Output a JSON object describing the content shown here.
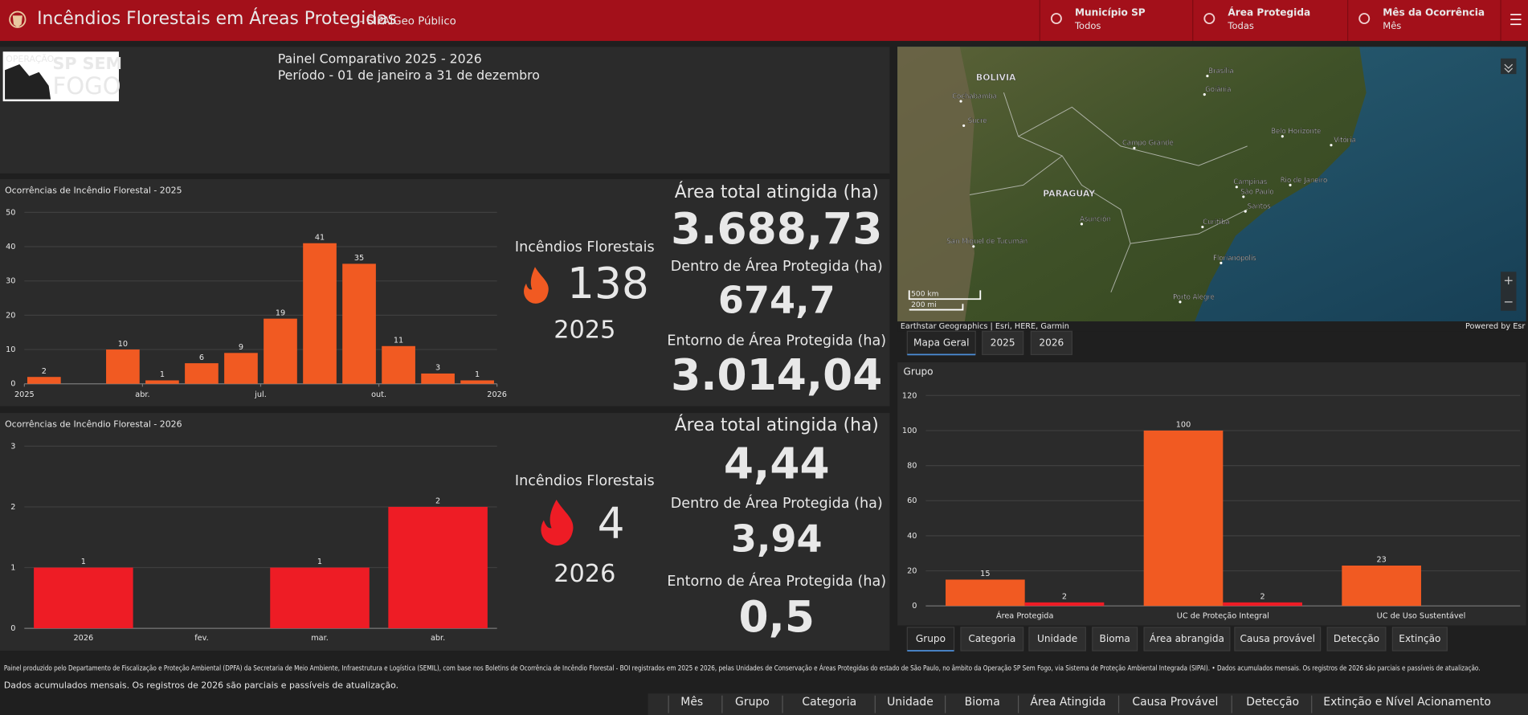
{
  "header": {
    "title": "Incêndios Florestais em Áreas Protegidas",
    "subtitle": "- SIPAIGeo Público",
    "filters": [
      {
        "label": "Município SP",
        "value": "Todos"
      },
      {
        "label": "Área Protegida",
        "value": "Todas"
      },
      {
        "label": "Mês da Ocorrência",
        "value": "Mês"
      }
    ]
  },
  "panel": {
    "logo_top": "OPERAÇÃO",
    "logo_main": "SP SEM",
    "logo_bottom": "FOGO",
    "title": "Painel Comparativo 2025 - 2026",
    "period": "Período - 01 de janeiro a 31 de dezembro"
  },
  "charts": [
    {
      "type": "bar",
      "title": "Ocorrências de Incêndio Florestal - 2025",
      "color": "#f15a22",
      "values": [
        2,
        null,
        10,
        1,
        6,
        9,
        19,
        41,
        35,
        11,
        3,
        1
      ],
      "xlim": [
        0,
        12
      ],
      "xticks": [
        {
          "value": 0,
          "label": "2025"
        },
        {
          "value": 3,
          "label": "abr."
        },
        {
          "value": 6,
          "label": "jul."
        },
        {
          "value": 9,
          "label": "out."
        },
        {
          "value": 12,
          "label": "2026"
        }
      ],
      "ylim": [
        0,
        50
      ],
      "yticks": [
        0,
        10,
        20,
        30,
        40,
        50
      ],
      "grid": true
    },
    {
      "type": "bar",
      "title": "Ocorrências de Incêndio Florestal - 2026",
      "color": "#ee1c25",
      "categories": [
        "2026",
        "fev.",
        "mar.",
        "abr."
      ],
      "values": [
        1,
        null,
        1,
        2
      ],
      "ylim": [
        0,
        3
      ],
      "yticks": [
        0,
        1,
        2,
        3
      ],
      "grid": true
    },
    {
      "type": "bar",
      "title": "Grupo",
      "categories": [
        "Área Protegida",
        "UC de Proteção Integral",
        "UC de Uso Sustentável"
      ],
      "series": [
        {
          "color": "#f15a22",
          "values": [
            15,
            100,
            23
          ]
        },
        {
          "color": "#ee1c25",
          "values": [
            2,
            2,
            null
          ]
        }
      ],
      "ylim": [
        0,
        120
      ],
      "yticks": [
        0,
        20,
        40,
        60,
        80,
        100,
        120
      ],
      "grid": true
    }
  ],
  "kpis": [
    {
      "label": "Incêndios Florestais",
      "count": 138,
      "year": "2025",
      "color": "#f15a22",
      "areas": [
        {
          "label": "Área total atingida (ha)",
          "value": "3.688,73"
        },
        {
          "label": "Dentro de Área Protegida (ha)",
          "value": "674,7"
        },
        {
          "label": "Entorno de Área Protegida (ha)",
          "value": "3.014,04"
        }
      ]
    },
    {
      "label": "Incêndios Florestais",
      "count": 4,
      "year": "2026",
      "color": "#ee1c25",
      "areas": [
        {
          "label": "Área total atingida (ha)",
          "value": "4,44"
        },
        {
          "label": "Dentro de Área Protegida (ha)",
          "value": "3,94"
        },
        {
          "label": "Entorno de Área Protegida (ha)",
          "value": "0,5"
        }
      ]
    }
  ],
  "map": {
    "labels": [
      "BOLIVIA",
      "Brasília",
      "Goiânia",
      "Cochabamba",
      "Sucre",
      "Campo Grande",
      "Belo Horizonte",
      "Vitória",
      "Campinas",
      "São Paulo",
      "Santos",
      "Rio de Janeiro",
      "PARAGUAY",
      "Curitiba",
      "Asunción",
      "San Miguel de Tucumán",
      "Florianópolis",
      "Porto Alegre"
    ],
    "scale": [
      "500 km",
      "200 mi"
    ],
    "attribution": "Earthstar Geographics | Esri, HERE, Garmin",
    "powered": "Powered by Esr",
    "tabs": [
      "Mapa Geral",
      "2025",
      "2026"
    ]
  },
  "group_tabs": [
    "Grupo",
    "Categoria",
    "Unidade",
    "Bioma",
    "Área abrangida",
    "Causa provável",
    "Detecção",
    "Extinção"
  ],
  "footer": {
    "note": "Painel produzido pelo Departamento de Fiscalização e Proteção Ambiental (DPFA) da Secretaria de Meio Ambiente, Infraestrutura e Logística (SEMIL), com base nos Boletins de Ocorrência de Incêndio Florestal - BOI registrados em 2025 e 2026, pelas Unidades de Conservação e Áreas Protegidas do estado de São Paulo, no âmbito da Operação SP Sem Fogo, via Sistema de Proteção Ambiental Integrada (SIPAI). •  Dados acumulados mensais.  Os registros de 2026 são parciais e passíveis de atualização.",
    "note2": "Dados acumulados mensais.  Os registros de 2026 são parciais e passíveis de atualização."
  },
  "nav": [
    "Mês",
    "Grupo",
    "Categoria",
    "Unidade",
    "Bioma",
    "Área Atingida",
    "Causa Provável",
    "Detecção",
    "Extinção e Nível Acionamento"
  ]
}
